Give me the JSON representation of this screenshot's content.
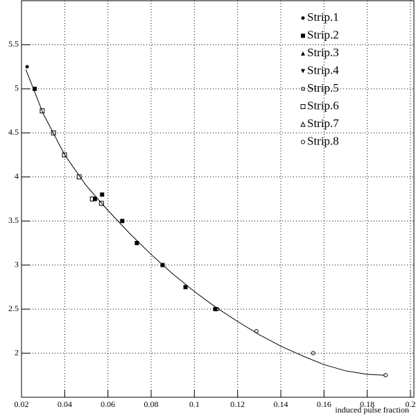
{
  "chart_data": {
    "type": "scatter",
    "x_label": "induced pulse fraction",
    "xlim": [
      0.02,
      0.2
    ],
    "ylim": [
      1.5,
      6
    ],
    "xticks": [
      0.02,
      0.04,
      0.06,
      0.08,
      0.1,
      0.12,
      0.14,
      0.16,
      0.18,
      0.2
    ],
    "yticks": [
      2,
      2.5,
      3,
      3.5,
      4,
      4.5,
      5,
      5.5
    ],
    "grid": true,
    "legend": "top-right",
    "series": [
      {
        "name": "Strip.1",
        "color": "#000000",
        "marker": "circle",
        "x": [
          0.0226
        ],
        "values": [
          5.25
        ]
      },
      {
        "name": "Strip.2",
        "color": "#000000",
        "marker": "square",
        "x": [
          0.0261,
          0.054,
          0.0573,
          0.0666,
          0.0734,
          0.0853,
          0.0959,
          0.1097
        ],
        "values": [
          5,
          3.75,
          3.8,
          3.5,
          3.25,
          3.0,
          2.75,
          2.5
        ]
      },
      {
        "name": "Strip.3",
        "color": "#000000",
        "marker": "triangle",
        "x": [],
        "values": []
      },
      {
        "name": "Strip.4",
        "color": "#000000",
        "marker": "triangle-down",
        "x": [],
        "values": []
      },
      {
        "name": "Strip.5",
        "color": "#000000",
        "marker": "small-open-square",
        "x": [],
        "values": []
      },
      {
        "name": "Strip.6",
        "color": "#000000",
        "marker": "open-square",
        "x": [
          0.0296,
          0.0348,
          0.0399,
          0.0467,
          0.0528,
          0.057
        ],
        "values": [
          4.75,
          4.5,
          4.25,
          4.0,
          3.75,
          3.7
        ]
      },
      {
        "name": "Strip.7",
        "color": "#000000",
        "marker": "open-triangle",
        "x": [],
        "values": []
      },
      {
        "name": "Strip.8",
        "color": "#000000",
        "marker": "open-circle",
        "x": [
          0.1107,
          0.1287,
          0.155,
          0.1885
        ],
        "values": [
          2.5,
          2.25,
          2.0,
          1.75
        ]
      }
    ],
    "fit": {
      "color": "#000000",
      "x": [
        0.022,
        0.03,
        0.04,
        0.05,
        0.06,
        0.07,
        0.08,
        0.09,
        0.1,
        0.11,
        0.12,
        0.13,
        0.14,
        0.15,
        0.16,
        0.17,
        0.18,
        0.188
      ],
      "y": [
        5.22,
        4.72,
        4.25,
        3.9,
        3.62,
        3.36,
        3.12,
        2.9,
        2.7,
        2.52,
        2.36,
        2.21,
        2.08,
        1.97,
        1.87,
        1.8,
        1.76,
        1.75
      ]
    }
  }
}
